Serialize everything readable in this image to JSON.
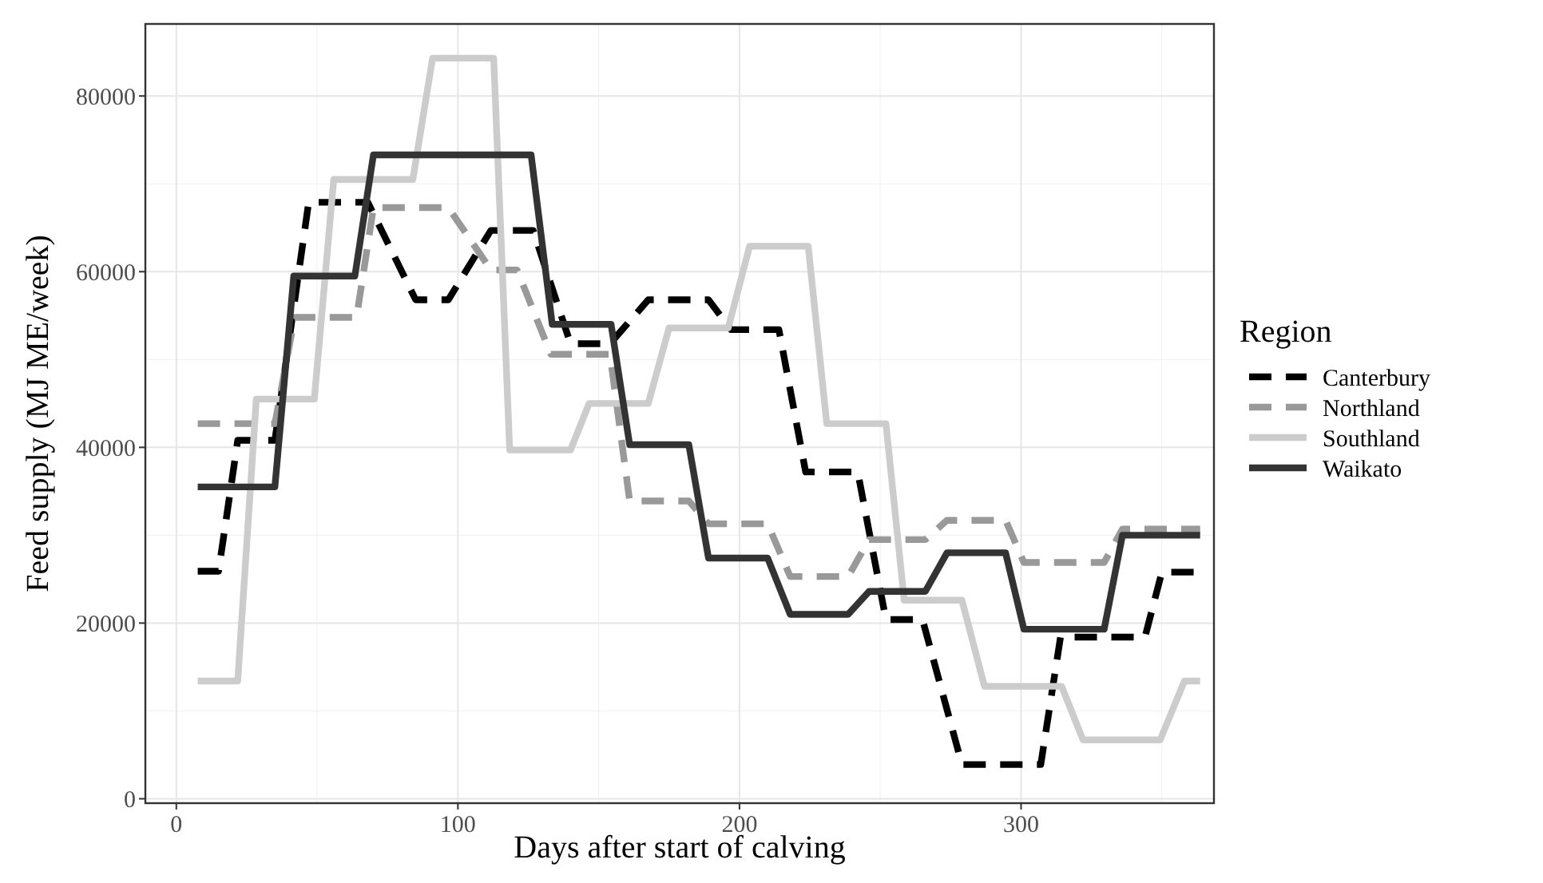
{
  "chart_data": {
    "type": "line",
    "xlabel": "Days after start of calving",
    "ylabel": "Feed supply (MJ ME/week)",
    "legend_title": "Region",
    "legend": "right",
    "grid": true,
    "xlim": [
      -11,
      368.5
    ],
    "ylim": [
      -500,
      88200
    ],
    "xticks": [
      0,
      100,
      200,
      300
    ],
    "yticks": [
      0,
      20000,
      40000,
      60000,
      80000
    ],
    "series": [
      {
        "name": "Canterbury",
        "color": "#000000",
        "line_style": "dashed",
        "x": [
          7.6,
          15,
          21.8,
          35,
          47,
          68,
          85,
          96.6,
          111.7,
          126.7,
          140,
          154,
          167.6,
          189,
          197,
          214,
          223.5,
          242,
          252,
          265,
          279,
          307,
          314,
          344,
          350,
          363.6
        ],
        "values": [
          25900,
          25900,
          40800,
          40800,
          67900,
          67900,
          56800,
          56800,
          64700,
          64700,
          51800,
          51800,
          56800,
          56800,
          53400,
          53400,
          37200,
          37200,
          20400,
          20400,
          3900,
          3900,
          18400,
          18400,
          25800,
          25800
        ]
      },
      {
        "name": "Northland",
        "color": "#999999",
        "line_style": "dashed",
        "x": [
          7.6,
          35,
          42,
          64,
          70,
          96.6,
          111.7,
          121,
          133,
          154,
          161,
          182,
          189,
          210,
          218,
          238.6,
          246,
          266,
          273.7,
          294.5,
          301,
          329.5,
          336,
          363.6
        ],
        "values": [
          42700,
          42700,
          54800,
          54800,
          67300,
          67300,
          60200,
          60200,
          50600,
          50600,
          33900,
          33900,
          31300,
          31300,
          25300,
          25300,
          29500,
          29500,
          31700,
          31700,
          26900,
          26900,
          30700,
          30700
        ]
      },
      {
        "name": "Southland",
        "color": "#cccccc",
        "line_style": "solid",
        "x": [
          7.6,
          21.8,
          28.4,
          49,
          55.9,
          84,
          91,
          112.7,
          118.4,
          140,
          146.6,
          167.6,
          175,
          196,
          203.6,
          224.4,
          231,
          252,
          258.5,
          279,
          287,
          314.4,
          322,
          349.4,
          358,
          363.6
        ],
        "values": [
          13400,
          13400,
          45500,
          45500,
          70500,
          70500,
          84300,
          84300,
          39700,
          39700,
          45000,
          45000,
          53600,
          53600,
          62900,
          62900,
          42700,
          42700,
          22600,
          22600,
          12800,
          12800,
          6700,
          6700,
          13400,
          13400
        ]
      },
      {
        "name": "Waikato",
        "color": "#333333",
        "line_style": "solid",
        "x": [
          7.6,
          35,
          41.7,
          63.4,
          70,
          126,
          133.5,
          154.4,
          161,
          182,
          189,
          210,
          218,
          238.6,
          246,
          266,
          273.7,
          294.5,
          301,
          329.5,
          336,
          363.6
        ],
        "values": [
          35500,
          35500,
          59500,
          59500,
          73300,
          73300,
          54000,
          54000,
          40300,
          40300,
          27400,
          27400,
          21000,
          21000,
          23600,
          23600,
          28000,
          28000,
          19300,
          19300,
          30000,
          30000
        ]
      }
    ]
  }
}
